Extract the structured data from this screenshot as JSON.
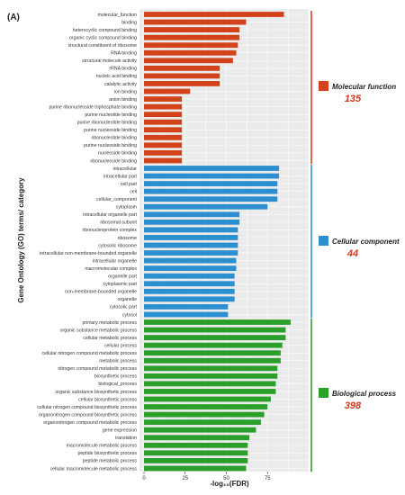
{
  "chart_data": {
    "type": "bar",
    "orientation": "horizontal",
    "panel_label": "(A)",
    "xlabel": "-log₁₀(FDR)",
    "ylabel": "Gene Ontology (GO) terms/ category",
    "xlim": [
      0,
      100
    ],
    "xticks": [
      0,
      25,
      50,
      75
    ],
    "grid": true,
    "legend_position": "right",
    "series": [
      {
        "name": "Molecular function",
        "count": "135",
        "color": "#d2431b",
        "categories": [
          "molecular_function",
          "binding",
          "heterocyclic compound binding",
          "organic cyclic compound binding",
          "structural constituent of ribosome",
          "RNA binding",
          "structural molecule activity",
          "rRNA binding",
          "nucleic acid binding",
          "catalytic activity",
          "ion binding",
          "anion binding",
          "purine ribonucleoside triphosphate binding",
          "purine nucleotide binding",
          "purine ribonucleotide binding",
          "purine nucleoside binding",
          "ribonucleotide binding",
          "purine nucleoside binding",
          "nucleoside binding",
          "ribonucleoside binding"
        ],
        "values": [
          85,
          62,
          58,
          58,
          57,
          56,
          54,
          46,
          46,
          46,
          28,
          23,
          23,
          23,
          23,
          23,
          23,
          23,
          23,
          23
        ]
      },
      {
        "name": "Cellular component",
        "count": "44",
        "color": "#2b8fd0",
        "categories": [
          "intracellular",
          "intracellular part",
          "cell part",
          "cell",
          "cellular_component",
          "cytoplasm",
          "intracellular organelle part",
          "ribosomal subunit",
          "ribonucleoprotein complex",
          "ribosome",
          "cytosolic ribosome",
          "intracellular non-membrane-bounded organelle",
          "intracellular organelle",
          "macromolecular complex",
          "organelle part",
          "cytoplasmic part",
          "non-membrane-bounded organelle",
          "organelle",
          "cytosolic part",
          "cytosol"
        ],
        "values": [
          82,
          82,
          81,
          81,
          81,
          75,
          58,
          58,
          57,
          57,
          57,
          57,
          56,
          56,
          55,
          55,
          55,
          55,
          51,
          51
        ]
      },
      {
        "name": "Biological process",
        "count": "398",
        "color": "#2aa02a",
        "categories": [
          "primary metabolic process",
          "organic substance metabolic process",
          "cellular metabolic process",
          "cellular process",
          "cellular nitrogen compound metabolic process",
          "metabolic process",
          "nitrogen compound metabolic process",
          "biosynthetic process",
          "biological_process",
          "organic substance biosynthetic process",
          "cellular biosynthetic process",
          "cellular nitrogen compound biosynthetic process",
          "organonitrogen compound biosynthetic process",
          "organonitrogen compound metabolic process",
          "gene expression",
          "translation",
          "macromolecule metabolic process",
          "peptide biosynthetic process",
          "peptide metabolic process",
          "cellular macromolecule metabolic process"
        ],
        "values": [
          89,
          86,
          86,
          84,
          83,
          83,
          81,
          81,
          80,
          80,
          77,
          75,
          73,
          71,
          68,
          64,
          63,
          63,
          63,
          62
        ]
      }
    ]
  }
}
